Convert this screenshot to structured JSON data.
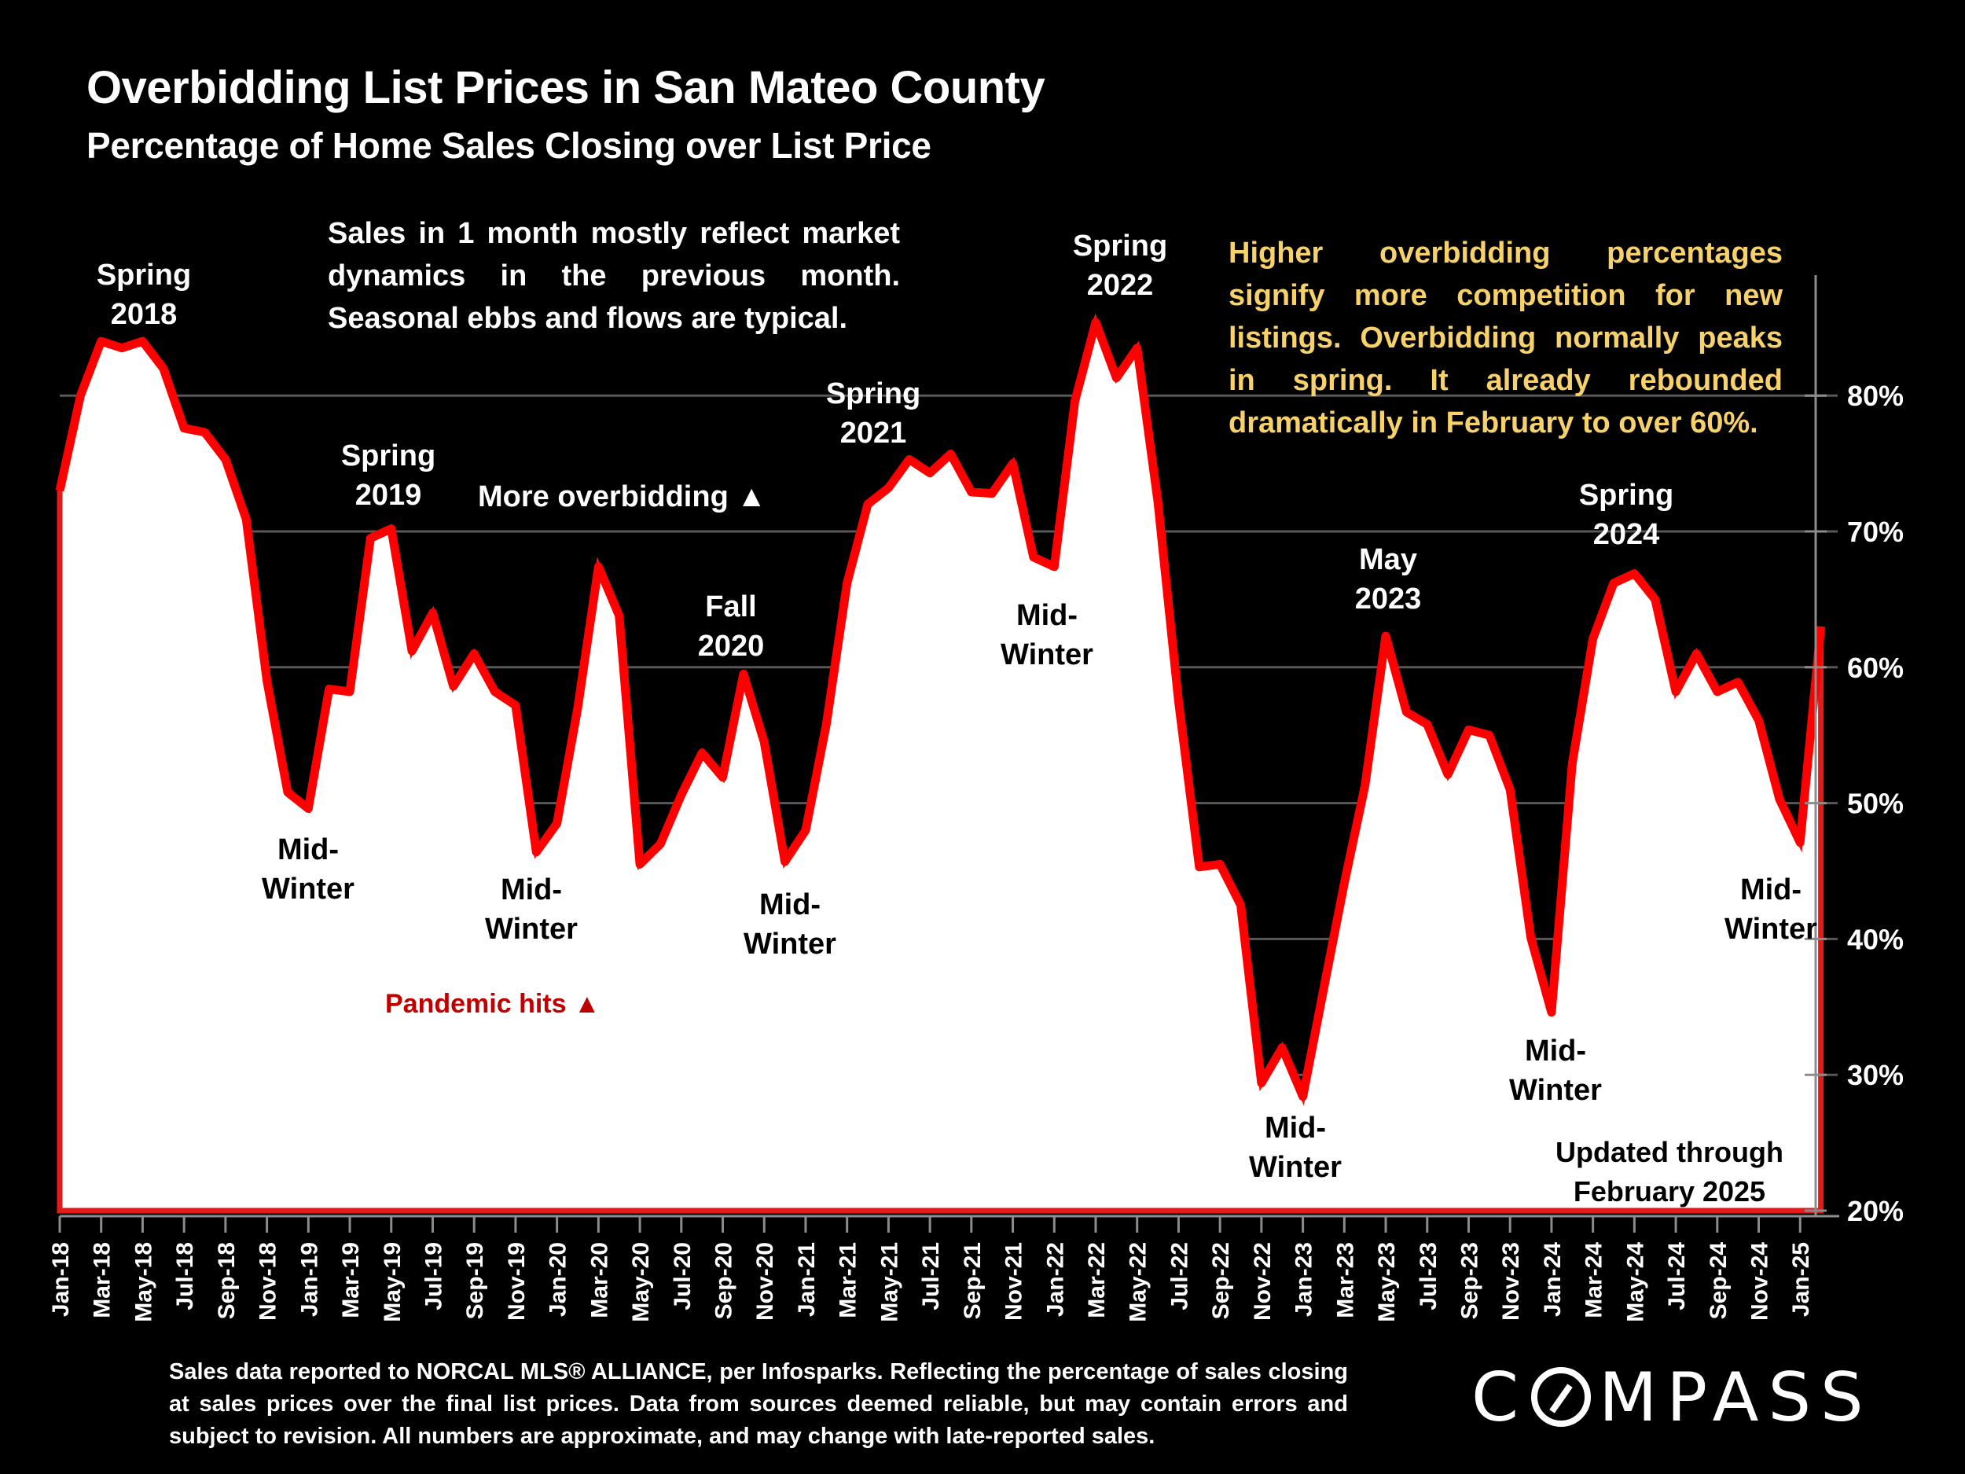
{
  "header": {
    "title": "Overbidding List Prices in San Mateo County",
    "subtitle": "Percentage of Home Sales Closing over List Price"
  },
  "notes": {
    "left": "Sales in 1 month mostly reflect market dynamics in the previous month. Seasonal ebbs and flows are typical.",
    "right": "Higher overbidding percentages signify more competition for new listings. Overbidding normally peaks in spring. It already rebounded dramatically in February to over 60%."
  },
  "footer": {
    "source": "Sales data reported to NORCAL MLS® ALLIANCE, per Infosparks. Reflecting the percentage of sales closing at sales prices over the final list prices. Data from sources deemed reliable, but may contain errors and subject to revision. All numbers are approximate, and may change with late-reported sales.",
    "logo": "COMPASS"
  },
  "colors": {
    "line": "#ff0000",
    "area": "#ffffff",
    "background": "#000000",
    "note_highlight": "#f7d26b",
    "pandemic": "#c00000",
    "gridline": "#595959"
  },
  "chart_data": {
    "type": "area",
    "title": "Overbidding List Prices in San Mateo County",
    "subtitle": "Percentage of Home Sales Closing over List Price",
    "xlabel": "",
    "ylabel": "",
    "y_axis_side": "right",
    "ylim": [
      20,
      88
    ],
    "yticks": [
      20,
      30,
      40,
      50,
      60,
      70,
      80
    ],
    "ytick_labels": [
      "20%",
      "30%",
      "40%",
      "50%",
      "60%",
      "70%",
      "80%"
    ],
    "grid": true,
    "legend": "none",
    "x_tick_labels": [
      "Jan-18",
      "Mar-18",
      "May-18",
      "Jul-18",
      "Sep-18",
      "Nov-18",
      "Jan-19",
      "Mar-19",
      "May-19",
      "Jul-19",
      "Sep-19",
      "Nov-19",
      "Jan-20",
      "Mar-20",
      "May-20",
      "Jul-20",
      "Sep-20",
      "Nov-20",
      "Jan-21",
      "Mar-21",
      "May-21",
      "Jul-21",
      "Sep-21",
      "Nov-21",
      "Jan-22",
      "Mar-22",
      "May-22",
      "Jul-22",
      "Sep-22",
      "Nov-22",
      "Jan-23",
      "Mar-23",
      "May-23",
      "Jul-23",
      "Sep-23",
      "Nov-23",
      "Jan-24",
      "Mar-24",
      "May-24",
      "Jul-24",
      "Sep-24",
      "Nov-24",
      "Jan-25"
    ],
    "x": [
      "Jan-18",
      "Feb-18",
      "Mar-18",
      "Apr-18",
      "May-18",
      "Jun-18",
      "Jul-18",
      "Aug-18",
      "Sep-18",
      "Oct-18",
      "Nov-18",
      "Dec-18",
      "Jan-19",
      "Feb-19",
      "Mar-19",
      "Apr-19",
      "May-19",
      "Jun-19",
      "Jul-19",
      "Aug-19",
      "Sep-19",
      "Oct-19",
      "Nov-19",
      "Dec-19",
      "Jan-20",
      "Feb-20",
      "Mar-20",
      "Apr-20",
      "May-20",
      "Jun-20",
      "Jul-20",
      "Aug-20",
      "Sep-20",
      "Oct-20",
      "Nov-20",
      "Dec-20",
      "Jan-21",
      "Feb-21",
      "Mar-21",
      "Apr-21",
      "May-21",
      "Jun-21",
      "Jul-21",
      "Aug-21",
      "Sep-21",
      "Oct-21",
      "Nov-21",
      "Dec-21",
      "Jan-22",
      "Feb-22",
      "Mar-22",
      "Apr-22",
      "May-22",
      "Jun-22",
      "Jul-22",
      "Aug-22",
      "Sep-22",
      "Oct-22",
      "Nov-22",
      "Dec-22",
      "Jan-23",
      "Feb-23",
      "Mar-23",
      "Apr-23",
      "May-23",
      "Jun-23",
      "Jul-23",
      "Aug-23",
      "Sep-23",
      "Oct-23",
      "Nov-23",
      "Dec-23",
      "Jan-24",
      "Feb-24",
      "Mar-24",
      "Apr-24",
      "May-24",
      "Jun-24",
      "Jul-24",
      "Aug-24",
      "Sep-24",
      "Oct-24",
      "Nov-24",
      "Dec-24",
      "Jan-25",
      "Feb-25"
    ],
    "series": [
      {
        "name": "% of home sales closing over list price",
        "values": [
          73.0,
          80.0,
          84.0,
          83.5,
          84.0,
          82.0,
          77.6,
          77.3,
          75.3,
          70.9,
          59.0,
          50.8,
          49.6,
          58.4,
          58.2,
          69.5,
          70.2,
          61.2,
          64.0,
          58.6,
          61.0,
          58.2,
          57.2,
          46.4,
          48.5,
          57.0,
          67.4,
          63.8,
          45.5,
          47.0,
          50.6,
          53.7,
          51.9,
          59.5,
          54.5,
          45.7,
          48.0,
          55.8,
          66.2,
          72.0,
          73.2,
          75.3,
          74.3,
          75.7,
          72.9,
          72.8,
          75.0,
          68.1,
          67.4,
          79.6,
          85.4,
          81.3,
          83.5,
          72.2,
          57.5,
          45.3,
          45.5,
          42.5,
          29.4,
          32.0,
          28.4,
          36.3,
          44.1,
          51.3,
          62.3,
          56.7,
          55.8,
          52.1,
          55.4,
          55.0,
          51.0,
          40.1,
          34.6,
          52.9,
          62.1,
          66.2,
          66.9,
          65.0,
          58.2,
          61.0,
          58.2,
          58.9,
          56.1,
          50.3,
          47.1,
          63.0
        ]
      }
    ],
    "annotations": [
      {
        "id": "spring-2018",
        "lines": [
          "Spring",
          "2018"
        ],
        "color": "white"
      },
      {
        "id": "spring-2019",
        "lines": [
          "Spring",
          "2019"
        ],
        "color": "white"
      },
      {
        "id": "more-overbidding",
        "lines": [
          "More overbidding ▲"
        ],
        "color": "white"
      },
      {
        "id": "fall-2020",
        "lines": [
          "Fall",
          "2020"
        ],
        "color": "white"
      },
      {
        "id": "spring-2021",
        "lines": [
          "Spring",
          "2021"
        ],
        "color": "white"
      },
      {
        "id": "spring-2022",
        "lines": [
          "Spring",
          "2022"
        ],
        "color": "white"
      },
      {
        "id": "may-2023",
        "lines": [
          "May",
          "2023"
        ],
        "color": "white"
      },
      {
        "id": "spring-2024",
        "lines": [
          "Spring",
          "2024"
        ],
        "color": "white"
      },
      {
        "id": "midwinter-2019",
        "lines": [
          "Mid-",
          "Winter"
        ],
        "color": "black"
      },
      {
        "id": "midwinter-2020",
        "lines": [
          "Mid-",
          "Winter"
        ],
        "color": "black"
      },
      {
        "id": "midwinter-2021",
        "lines": [
          "Mid-",
          "Winter"
        ],
        "color": "black"
      },
      {
        "id": "midwinter-2022",
        "lines": [
          "Mid-",
          "Winter"
        ],
        "color": "black"
      },
      {
        "id": "midwinter-2023",
        "lines": [
          "Mid-",
          "Winter"
        ],
        "color": "black"
      },
      {
        "id": "midwinter-2024",
        "lines": [
          "Mid-",
          "Winter"
        ],
        "color": "black"
      },
      {
        "id": "midwinter-2025",
        "lines": [
          "Mid-",
          "Winter"
        ],
        "color": "black"
      },
      {
        "id": "pandemic-hits",
        "lines": [
          "Pandemic hits ▲"
        ],
        "color": "red"
      },
      {
        "id": "updated-through",
        "lines": [
          "Updated through",
          "February 2025"
        ],
        "color": "black"
      }
    ]
  }
}
